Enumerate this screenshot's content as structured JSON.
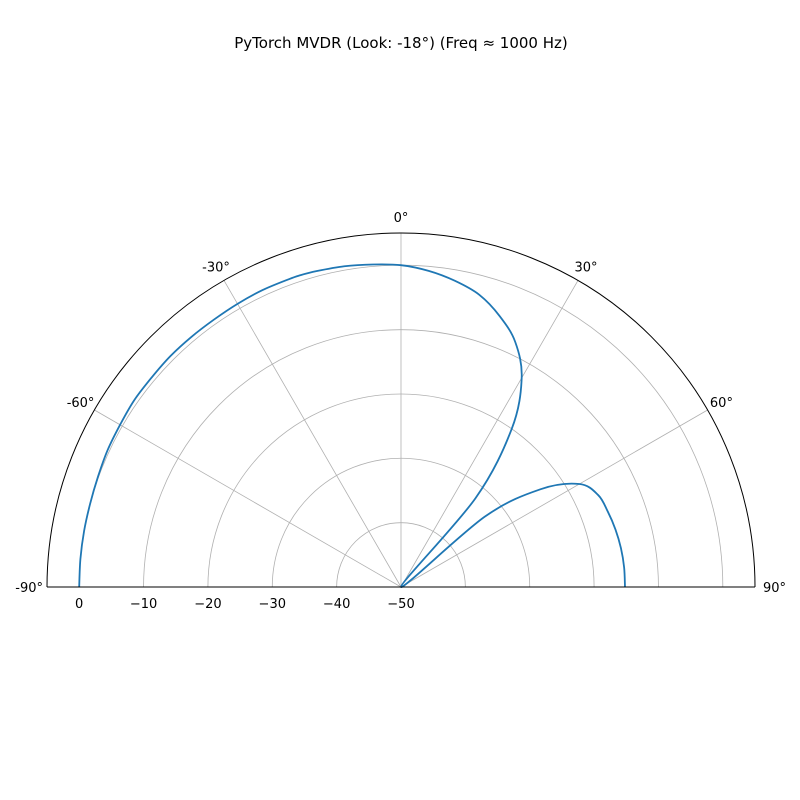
{
  "chart_data": {
    "type": "line",
    "projection": "polar-half",
    "title": "PyTorch MVDR (Look: -18°) (Freq ≈ 1000 Hz)",
    "theta_range_deg": [
      -90,
      90
    ],
    "theta_zero": "top",
    "theta_direction": "clockwise",
    "theta_ticks_deg": [
      -90,
      -60,
      -30,
      0,
      30,
      60,
      90
    ],
    "theta_tick_labels": [
      "-90°",
      "-60°",
      "-30°",
      "0°",
      "30°",
      "60°",
      "90°"
    ],
    "r_range_db": [
      -50,
      5
    ],
    "r_ticks": [
      0,
      -10,
      -20,
      -30,
      -40,
      -50
    ],
    "r_tick_labels": [
      "0",
      "−10",
      "−20",
      "−30",
      "−40",
      "−50"
    ],
    "grid": true,
    "series": [
      {
        "color": "#1f77b4",
        "points_theta_deg_r_db": [
          [
            -90,
            0.0
          ],
          [
            -85,
            0.0
          ],
          [
            -80,
            0.0
          ],
          [
            -75,
            0.0
          ],
          [
            -70,
            0.1
          ],
          [
            -65,
            0.3
          ],
          [
            -60,
            0.4
          ],
          [
            -55,
            0.6
          ],
          [
            -50,
            0.6
          ],
          [
            -45,
            0.7
          ],
          [
            -40,
            0.7
          ],
          [
            -35,
            0.7
          ],
          [
            -30,
            0.8
          ],
          [
            -25,
            0.9
          ],
          [
            -20,
            0.9
          ],
          [
            -18,
            0.9
          ],
          [
            -15,
            0.8
          ],
          [
            -10,
            0.6
          ],
          [
            -5,
            0.3
          ],
          [
            0,
            0.0
          ],
          [
            5,
            -0.7
          ],
          [
            10,
            -1.7
          ],
          [
            15,
            -3.0
          ],
          [
            20,
            -5.2
          ],
          [
            25,
            -8.0
          ],
          [
            30,
            -12.5
          ],
          [
            35,
            -20.0
          ],
          [
            40,
            -32.0
          ],
          [
            45,
            -50.0
          ],
          [
            50,
            -33.0
          ],
          [
            55,
            -23.5
          ],
          [
            60,
            -18.0
          ],
          [
            65,
            -16.2
          ],
          [
            70,
            -15.8
          ],
          [
            75,
            -15.5
          ],
          [
            80,
            -15.3
          ],
          [
            85,
            -15.2
          ],
          [
            90,
            -15.2
          ]
        ]
      }
    ]
  }
}
